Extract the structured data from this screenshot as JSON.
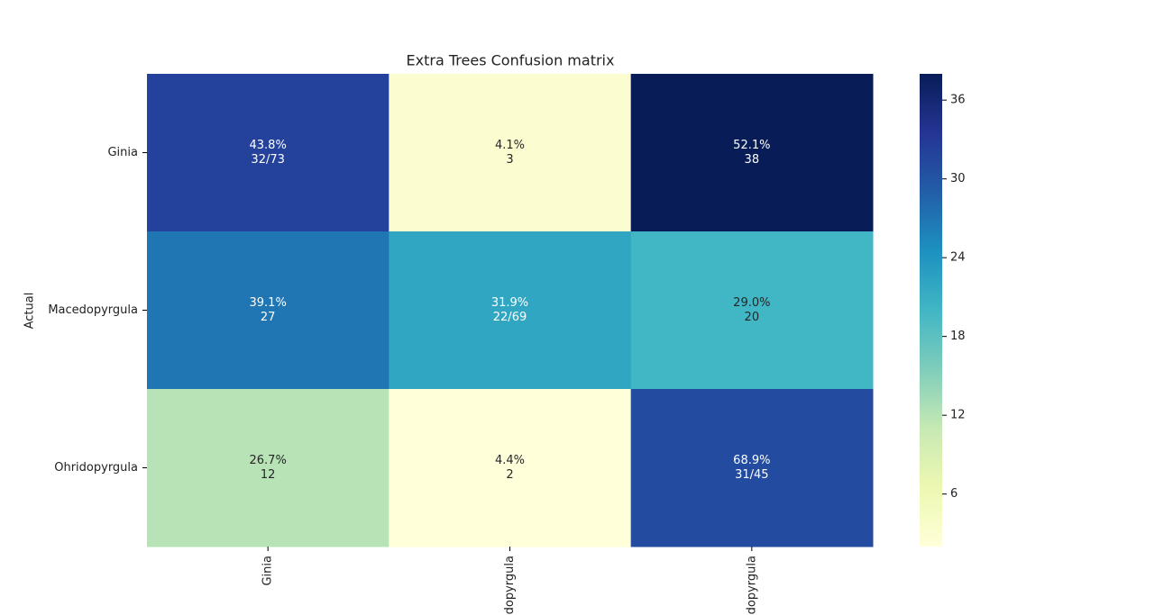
{
  "chart_data": {
    "type": "heatmap",
    "title": "Extra Trees Confusion matrix",
    "ylabel": "Actual",
    "x_categories": [
      "Ginia",
      "Macedopyrgula",
      "Ohridopyrgula"
    ],
    "y_categories": [
      "Ginia",
      "Macedopyrgula",
      "Ohridopyrgula"
    ],
    "values": [
      [
        32,
        3,
        38
      ],
      [
        27,
        22,
        20
      ],
      [
        12,
        2,
        31
      ]
    ],
    "value_labels": [
      [
        [
          "43.8%",
          "32/73"
        ],
        [
          "4.1%",
          "3"
        ],
        [
          "52.1%",
          "38"
        ]
      ],
      [
        [
          "39.1%",
          "27"
        ],
        [
          "31.9%",
          "22/69"
        ],
        [
          "29.0%",
          "20"
        ]
      ],
      [
        [
          "26.7%",
          "12"
        ],
        [
          "4.4%",
          "2"
        ],
        [
          "68.9%",
          "31/45"
        ]
      ]
    ],
    "colormap": "YlGnBu",
    "clim": [
      2,
      38
    ],
    "cticks": [
      6,
      12,
      18,
      24,
      30,
      36
    ]
  }
}
